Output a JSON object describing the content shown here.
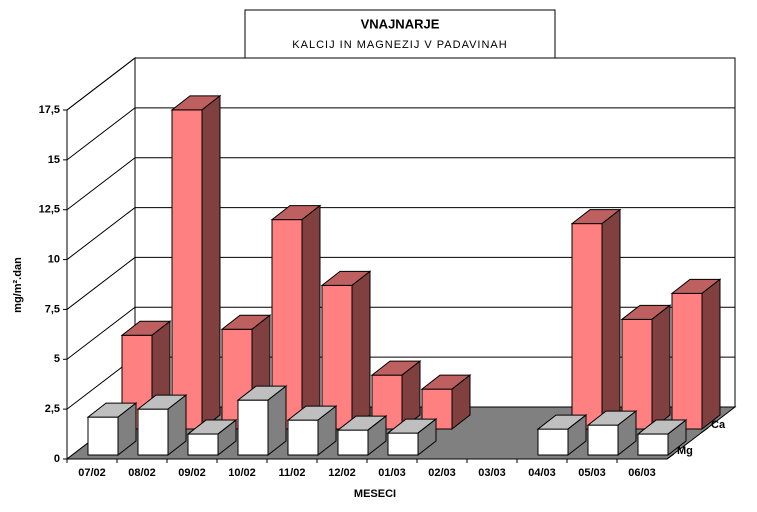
{
  "chart_data": {
    "type": "bar3d",
    "title": "VNAJNARJE",
    "subtitle": "KALCIJ IN MAGNEZIJ V PADAVINAH",
    "x_label": "MESECI",
    "y_label": "mg/m².dan",
    "categories": [
      "07/02",
      "08/02",
      "09/02",
      "10/02",
      "11/02",
      "12/02",
      "01/03",
      "02/03",
      "03/03",
      "04/03",
      "05/03",
      "06/03"
    ],
    "series": [
      {
        "name": "Ca",
        "color": "#ff8080",
        "values": [
          4.7,
          16,
          5,
          10.5,
          7.2,
          2.7,
          2,
          null,
          null,
          10.3,
          5.5,
          6.8
        ]
      },
      {
        "name": "Mg",
        "color": "#ffffff",
        "values": [
          1.9,
          2.3,
          1.05,
          2.75,
          1.75,
          1.25,
          1.1,
          null,
          null,
          1.3,
          1.5,
          1.05
        ]
      }
    ],
    "ylim": [
      0,
      17.5
    ],
    "yticks": [
      0,
      {
        "value": 2.5,
        "label": "2,5"
      },
      5,
      {
        "value": 7.5,
        "label": "7,5"
      },
      10,
      {
        "value": 12.5,
        "label": "12,5"
      },
      15,
      {
        "value": 17.5,
        "label": "17,5"
      }
    ],
    "grid": true
  }
}
